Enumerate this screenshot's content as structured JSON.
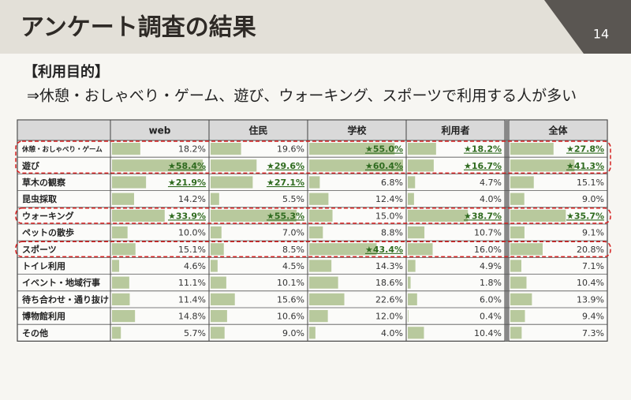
{
  "header": {
    "title": "アンケート調査の結果",
    "page_number": "14"
  },
  "section": {
    "heading": "【利用目的】",
    "summary": "⇒休憩・おしゃべり・ゲーム、遊び、ウォーキング、スポーツで利用する人が多い"
  },
  "table": {
    "columns": [
      "web",
      "住民",
      "学校",
      "利用者",
      "全体"
    ],
    "rows": [
      {
        "label": "休憩・おしゃべり・ゲーム",
        "cells": [
          {
            "value": 18.2,
            "label": "18.2%"
          },
          {
            "value": 19.6,
            "label": "19.6%"
          },
          {
            "value": 55.0,
            "label": "★55.0%"
          },
          {
            "value": 18.2,
            "label": "★18.2%"
          },
          {
            "value": 27.8,
            "label": "★27.8%"
          }
        ]
      },
      {
        "label": "遊び",
        "cells": [
          {
            "value": 58.4,
            "label": "★58.4%"
          },
          {
            "value": 29.6,
            "label": "★29.6%"
          },
          {
            "value": 60.4,
            "label": "★60.4%"
          },
          {
            "value": 16.7,
            "label": "★16.7%"
          },
          {
            "value": 41.3,
            "label": "★41.3%"
          }
        ]
      },
      {
        "label": "草木の観察",
        "cells": [
          {
            "value": 21.9,
            "label": "★21.9%"
          },
          {
            "value": 27.1,
            "label": "★27.1%"
          },
          {
            "value": 6.8,
            "label": "6.8%"
          },
          {
            "value": 4.7,
            "label": "4.7%"
          },
          {
            "value": 15.1,
            "label": "15.1%"
          }
        ]
      },
      {
        "label": "昆虫採取",
        "cells": [
          {
            "value": 14.2,
            "label": "14.2%"
          },
          {
            "value": 5.5,
            "label": "5.5%"
          },
          {
            "value": 12.4,
            "label": "12.4%"
          },
          {
            "value": 4.0,
            "label": "4.0%"
          },
          {
            "value": 9.0,
            "label": "9.0%"
          }
        ]
      },
      {
        "label": "ウォーキング",
        "cells": [
          {
            "value": 33.9,
            "label": "★33.9%"
          },
          {
            "value": 55.3,
            "label": "★55.3%"
          },
          {
            "value": 15.0,
            "label": "15.0%"
          },
          {
            "value": 38.7,
            "label": "★38.7%"
          },
          {
            "value": 35.7,
            "label": "★35.7%"
          }
        ]
      },
      {
        "label": "ペットの散歩",
        "cells": [
          {
            "value": 10.0,
            "label": "10.0%"
          },
          {
            "value": 7.0,
            "label": "7.0%"
          },
          {
            "value": 8.8,
            "label": "8.8%"
          },
          {
            "value": 10.7,
            "label": "10.7%"
          },
          {
            "value": 9.1,
            "label": "9.1%"
          }
        ]
      },
      {
        "label": "スポーツ",
        "cells": [
          {
            "value": 15.1,
            "label": "15.1%"
          },
          {
            "value": 8.5,
            "label": "8.5%"
          },
          {
            "value": 43.4,
            "label": "★43.4%"
          },
          {
            "value": 16.0,
            "label": "16.0%"
          },
          {
            "value": 20.8,
            "label": "20.8%"
          }
        ]
      },
      {
        "label": "トイレ利用",
        "cells": [
          {
            "value": 4.6,
            "label": "4.6%"
          },
          {
            "value": 4.5,
            "label": "4.5%"
          },
          {
            "value": 14.3,
            "label": "14.3%"
          },
          {
            "value": 4.9,
            "label": "4.9%"
          },
          {
            "value": 7.1,
            "label": "7.1%"
          }
        ]
      },
      {
        "label": "イベント・地域行事",
        "cells": [
          {
            "value": 11.1,
            "label": "11.1%"
          },
          {
            "value": 10.1,
            "label": "10.1%"
          },
          {
            "value": 18.6,
            "label": "18.6%"
          },
          {
            "value": 1.8,
            "label": "1.8%"
          },
          {
            "value": 10.4,
            "label": "10.4%"
          }
        ]
      },
      {
        "label": "待ち合わせ・通り抜け",
        "cells": [
          {
            "value": 11.4,
            "label": "11.4%"
          },
          {
            "value": 15.6,
            "label": "15.6%"
          },
          {
            "value": 22.6,
            "label": "22.6%"
          },
          {
            "value": 6.0,
            "label": "6.0%"
          },
          {
            "value": 13.9,
            "label": "13.9%"
          }
        ]
      },
      {
        "label": "博物館利用",
        "cells": [
          {
            "value": 14.8,
            "label": "14.8%"
          },
          {
            "value": 10.6,
            "label": "10.6%"
          },
          {
            "value": 12.0,
            "label": "12.0%"
          },
          {
            "value": 0.4,
            "label": "0.4%"
          },
          {
            "value": 9.4,
            "label": "9.4%"
          }
        ]
      },
      {
        "label": "その他",
        "cells": [
          {
            "value": 5.7,
            "label": "5.7%"
          },
          {
            "value": 9.0,
            "label": "9.0%"
          },
          {
            "value": 4.0,
            "label": "4.0%"
          },
          {
            "value": 10.4,
            "label": "10.4%"
          },
          {
            "value": 7.3,
            "label": "7.3%"
          }
        ]
      }
    ]
  }
}
